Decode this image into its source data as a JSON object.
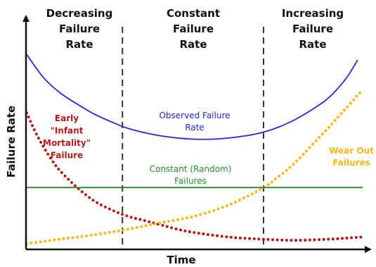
{
  "chart_data": {
    "type": "line",
    "title": "",
    "xlabel": "Time",
    "ylabel": "Failure Rate",
    "grid": false,
    "legend": "none",
    "x_range": [
      0,
      10
    ],
    "y_range": [
      0,
      10
    ],
    "regions": [
      {
        "name": "decreasing",
        "lines": [
          "Decreasing",
          "Failure",
          "Rate"
        ],
        "x_start": 0,
        "x_end": 2.85
      },
      {
        "name": "constant",
        "lines": [
          "Constant",
          "Failure",
          "Rate"
        ],
        "x_start": 2.85,
        "x_end": 7.05
      },
      {
        "name": "increasing",
        "lines": [
          "Increasing",
          "Failure",
          "Rate"
        ],
        "x_start": 7.05,
        "x_end": 10
      }
    ],
    "series": [
      {
        "key": "observed",
        "label_lines": [
          "Observed Failure",
          "Rate"
        ],
        "color": "#2727d6",
        "style": "solid",
        "x": [
          0.0,
          0.5,
          1.0,
          1.5,
          2.0,
          2.5,
          3.0,
          3.5,
          4.0,
          4.5,
          5.0,
          5.5,
          6.0,
          6.5,
          7.0,
          7.5,
          8.0,
          8.5,
          9.0,
          9.5,
          9.85
        ],
        "y": [
          8.8,
          7.75,
          7.05,
          6.55,
          6.1,
          5.75,
          5.45,
          5.25,
          5.1,
          5.0,
          4.95,
          4.95,
          5.0,
          5.1,
          5.25,
          5.5,
          5.85,
          6.3,
          6.85,
          7.7,
          8.55
        ]
      },
      {
        "key": "infant",
        "label_lines": [
          "Early",
          "\"Infant",
          "Mortality\"",
          "Failure"
        ],
        "color": "#b01c1c",
        "style": "dotted",
        "x": [
          0.0,
          0.25,
          0.5,
          0.75,
          1.0,
          1.5,
          2.0,
          2.5,
          3.0,
          3.5,
          4.0,
          4.5,
          5.0,
          6.0,
          7.0,
          8.0,
          9.0,
          9.5,
          10.0
        ],
        "y": [
          6.15,
          5.3,
          4.6,
          4.0,
          3.5,
          2.75,
          2.15,
          1.75,
          1.45,
          1.25,
          1.05,
          0.85,
          0.7,
          0.5,
          0.4,
          0.35,
          0.4,
          0.45,
          0.5
        ]
      },
      {
        "key": "wear_out",
        "label_lines": [
          "Wear Out",
          "Failures"
        ],
        "color": "#f6b81c",
        "style": "dotted",
        "x": [
          0.0,
          1.0,
          2.0,
          3.0,
          4.0,
          5.0,
          6.0,
          7.0,
          7.5,
          8.0,
          8.5,
          9.0,
          9.5,
          10.0
        ],
        "y": [
          0.2,
          0.4,
          0.6,
          0.85,
          1.15,
          1.45,
          1.95,
          2.7,
          3.25,
          3.9,
          4.7,
          5.5,
          6.35,
          7.2
        ]
      },
      {
        "key": "constant",
        "label_lines": [
          "Constant (Random)",
          "Failures"
        ],
        "color": "#2b8a2b",
        "style": "solid",
        "x": [
          0.0,
          10.0
        ],
        "y": [
          2.75,
          2.75
        ]
      }
    ]
  }
}
